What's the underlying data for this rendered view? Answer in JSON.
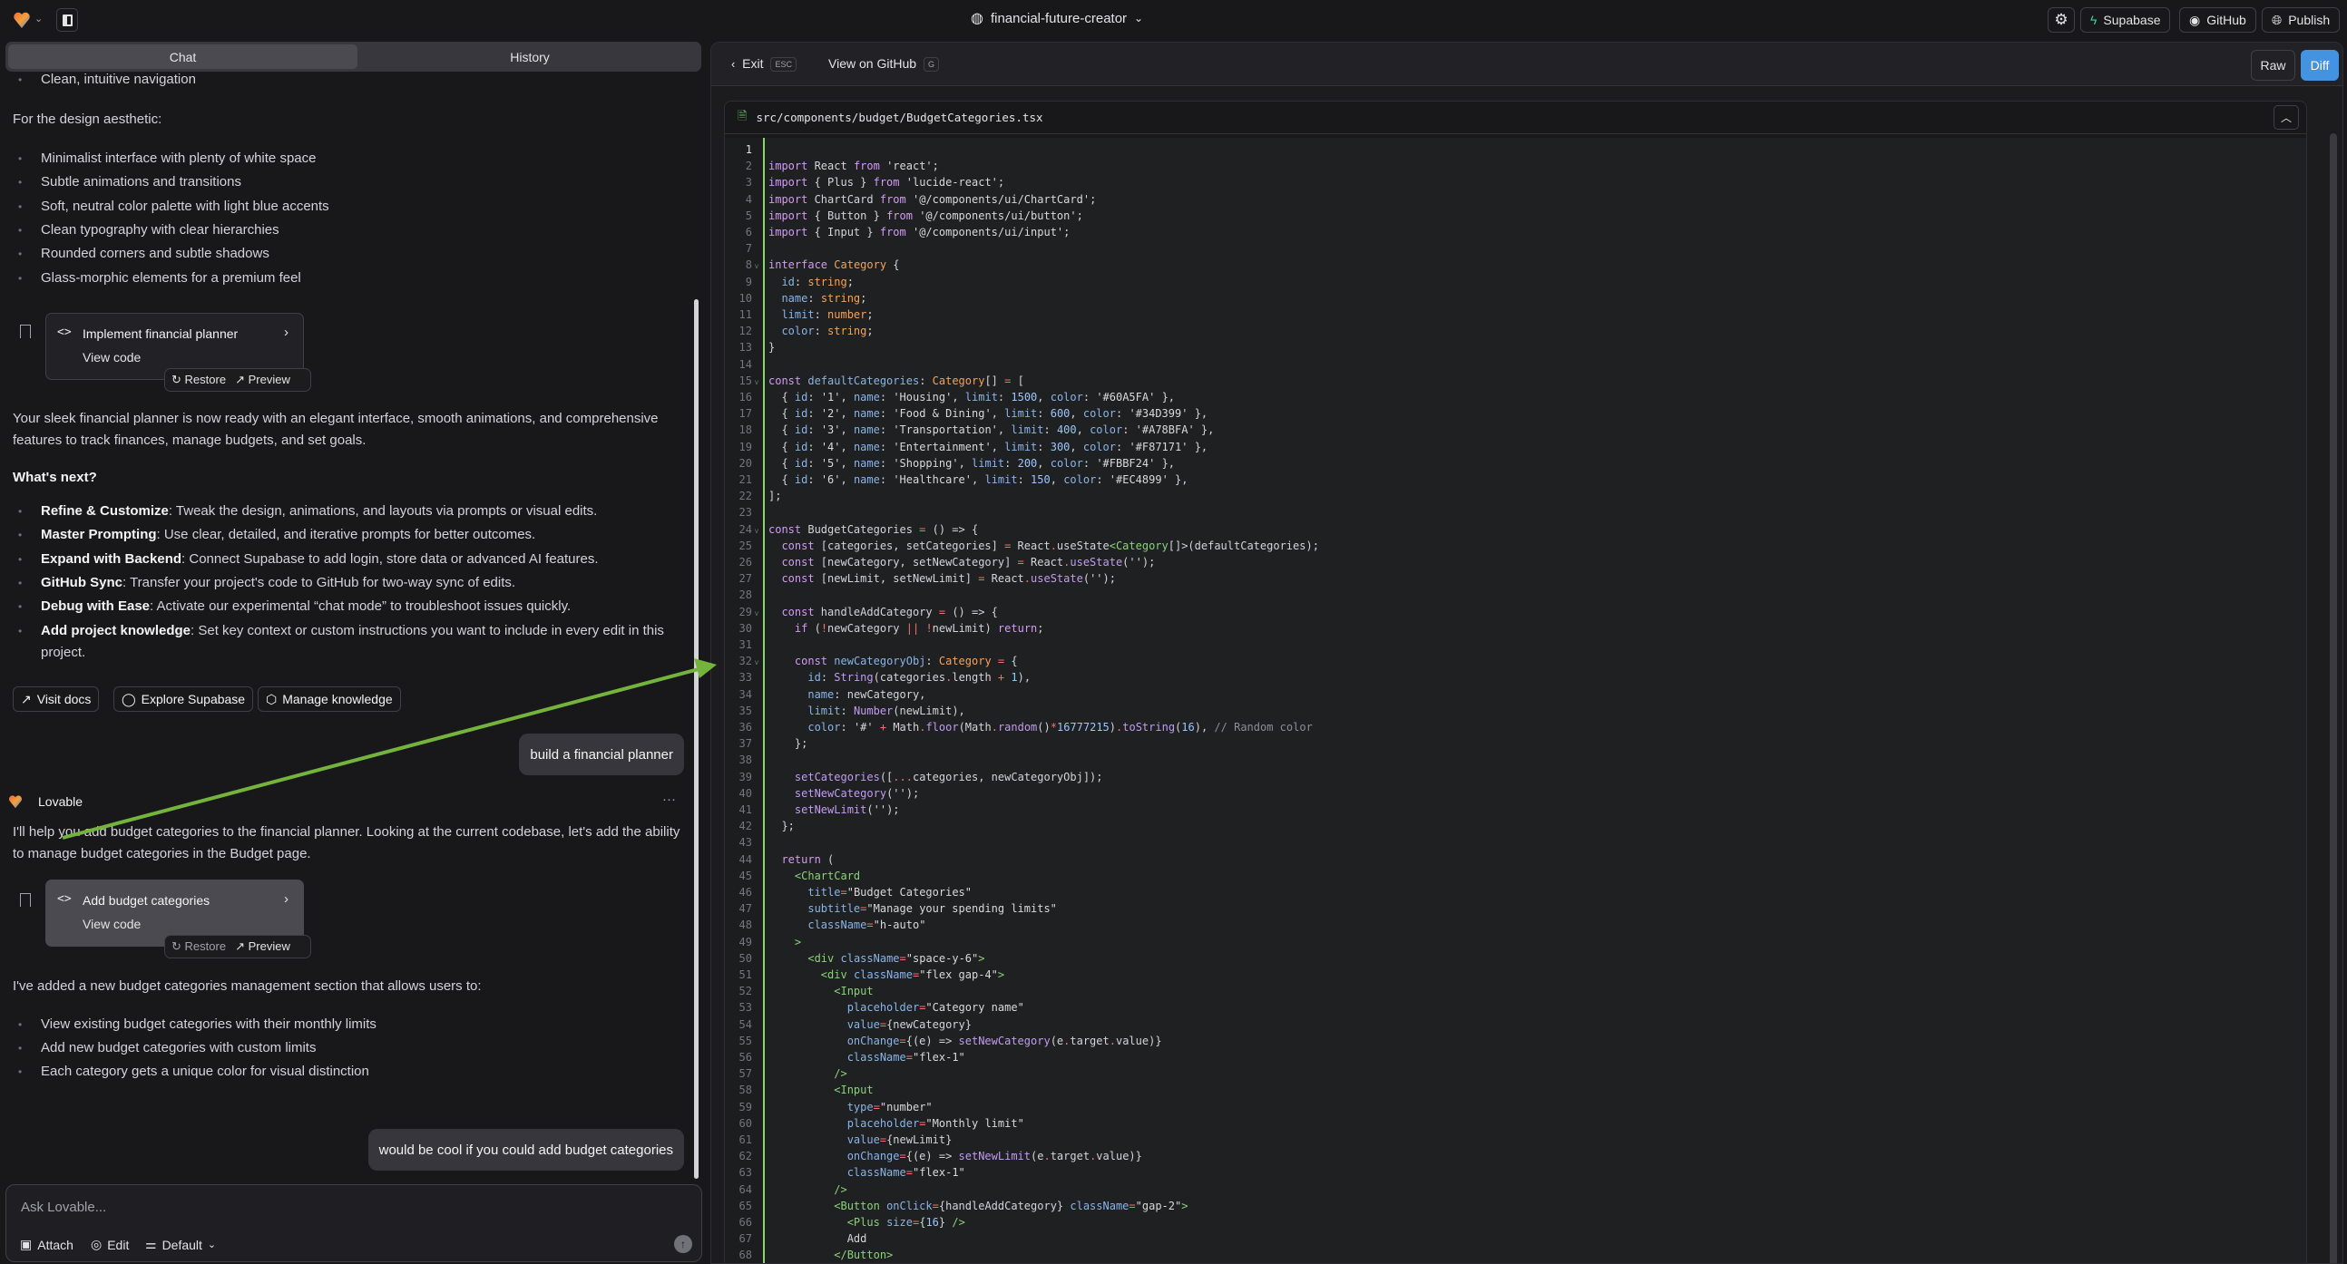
{
  "topbar": {
    "project": "financial-future-creator",
    "supabase": "Supabase",
    "github": "GitHub",
    "publish": "Publish"
  },
  "chat_tabs": {
    "chat": "Chat",
    "history": "History"
  },
  "chat": {
    "prev_bullet": "Clean, intuitive navigation",
    "design_intro": "For the design aesthetic:",
    "design_bullets": [
      "Minimalist interface with plenty of white space",
      "Subtle animations and transitions",
      "Soft, neutral color palette with light blue accents",
      "Clean typography with clear hierarchies",
      "Rounded corners and subtle shadows",
      "Glass-morphic elements for a premium feel"
    ],
    "card1": {
      "title": "Implement financial planner",
      "view": "View code",
      "restore": "Restore",
      "preview": "Preview"
    },
    "ready_text": "Your sleek financial planner is now ready with an elegant interface, smooth animations, and comprehensive features to track finances, manage budgets, and set goals.",
    "whats_next": "What's next?",
    "next_items": [
      {
        "b": "Refine & Customize",
        "t": ": Tweak the design, animations, and layouts via prompts or visual edits."
      },
      {
        "b": "Master Prompting",
        "t": ": Use clear, detailed, and iterative prompts for better outcomes."
      },
      {
        "b": "Expand with Backend",
        "t": ": Connect Supabase to add login, store data or advanced AI features."
      },
      {
        "b": "GitHub Sync",
        "t": ": Transfer your project's code to GitHub for two-way sync of edits."
      },
      {
        "b": "Debug with Ease",
        "t": ": Activate our experimental “chat mode” to troubleshoot issues quickly."
      },
      {
        "b": "Add project knowledge",
        "t": ": Set key context or custom instructions you want to include in every edit in this project."
      }
    ],
    "quick": {
      "docs": "Visit docs",
      "supabase": "Explore Supabase",
      "knowledge": "Manage knowledge"
    },
    "user1": "build a financial planner",
    "assistant_name": "Lovable",
    "more": "···",
    "reply": "I'll help you add budget categories to the financial planner. Looking at the current codebase, let's add the ability to manage budget categories in the Budget page.",
    "card2": {
      "title": "Add budget categories",
      "view": "View code",
      "restore": "Restore",
      "preview": "Preview"
    },
    "added": "I've added a new budget categories management section that allows users to:",
    "added_bullets": [
      "View existing budget categories with their monthly limits",
      "Add new budget categories with custom limits",
      "Each category gets a unique color for visual distinction"
    ],
    "user2": "would be cool if you could add budget categories"
  },
  "input": {
    "placeholder": "Ask Lovable...",
    "attach": "Attach",
    "edit": "Edit",
    "mode": "Default"
  },
  "code_panel": {
    "exit": "Exit",
    "exit_key": "ESC",
    "github": "View on GitHub",
    "github_key": "G",
    "raw": "Raw",
    "diff": "Diff",
    "active_view": "Diff",
    "accent": "#4493e0",
    "file": "src/components/budget/BudgetCategories.tsx",
    "lines": [
      "",
      "import React from 'react';",
      "import { Plus } from 'lucide-react';",
      "import ChartCard from '@/components/ui/ChartCard';",
      "import { Button } from '@/components/ui/button';",
      "import { Input } from '@/components/ui/input';",
      "",
      "interface Category {",
      "  id: string;",
      "  name: string;",
      "  limit: number;",
      "  color: string;",
      "}",
      "",
      "const defaultCategories: Category[] = [",
      "  { id: '1', name: 'Housing', limit: 1500, color: '#60A5FA' },",
      "  { id: '2', name: 'Food & Dining', limit: 600, color: '#34D399' },",
      "  { id: '3', name: 'Transportation', limit: 400, color: '#A78BFA' },",
      "  { id: '4', name: 'Entertainment', limit: 300, color: '#F87171' },",
      "  { id: '5', name: 'Shopping', limit: 200, color: '#FBBF24' },",
      "  { id: '6', name: 'Healthcare', limit: 150, color: '#EC4899' },",
      "];",
      "",
      "const BudgetCategories = () => {",
      "  const [categories, setCategories] = React.useState<Category[]>(defaultCategories);",
      "  const [newCategory, setNewCategory] = React.useState('');",
      "  const [newLimit, setNewLimit] = React.useState('');",
      "",
      "  const handleAddCategory = () => {",
      "    if (!newCategory || !newLimit) return;",
      "",
      "    const newCategoryObj: Category = {",
      "      id: String(categories.length + 1),",
      "      name: newCategory,",
      "      limit: Number(newLimit),",
      "      color: '#' + Math.floor(Math.random()*16777215).toString(16), // Random color",
      "    };",
      "",
      "    setCategories([...categories, newCategoryObj]);",
      "    setNewCategory('');",
      "    setNewLimit('');",
      "  };",
      "",
      "  return (",
      "    <ChartCard",
      "      title=\"Budget Categories\"",
      "      subtitle=\"Manage your spending limits\"",
      "      className=\"h-auto\"",
      "    >",
      "      <div className=\"space-y-6\">",
      "        <div className=\"flex gap-4\">",
      "          <Input",
      "            placeholder=\"Category name\"",
      "            value={newCategory}",
      "            onChange={(e) => setNewCategory(e.target.value)}",
      "            className=\"flex-1\"",
      "          />",
      "          <Input",
      "            type=\"number\"",
      "            placeholder=\"Monthly limit\"",
      "            value={newLimit}",
      "            onChange={(e) => setNewLimit(e.target.value)}",
      "            className=\"flex-1\"",
      "          />",
      "          <Button onClick={handleAddCategory} className=\"gap-2\">",
      "            <Plus size={16} />",
      "            Add",
      "          </Button>"
    ],
    "folded_lines": [
      8,
      15,
      24,
      29,
      32
    ]
  }
}
